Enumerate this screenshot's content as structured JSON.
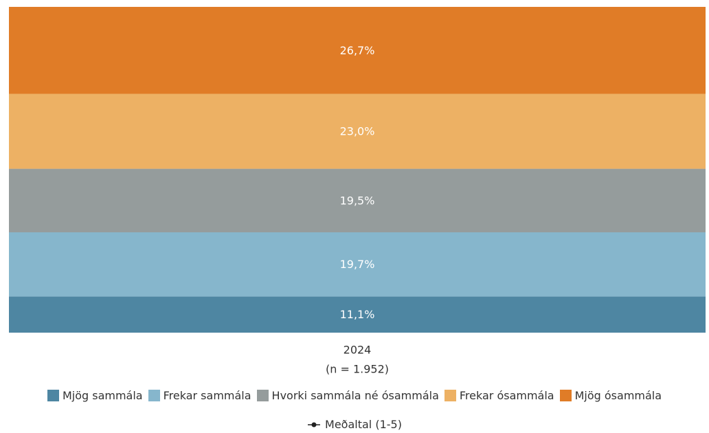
{
  "chart_data": {
    "type": "stacked_bar",
    "categories": [
      "2024"
    ],
    "category_notes": [
      "(n = 1.952)"
    ],
    "ylim": [
      0,
      100
    ],
    "series": [
      {
        "name": "Mjög sammála",
        "color": "#4e86a2",
        "values": [
          11.1
        ],
        "value_labels": [
          "11,1%"
        ]
      },
      {
        "name": "Frekar sammála",
        "color": "#86b6cc",
        "values": [
          19.7
        ],
        "value_labels": [
          "19,7%"
        ]
      },
      {
        "name": "Hvorki sammála né ósammála",
        "color": "#959c9c",
        "values": [
          19.5
        ],
        "value_labels": [
          "19,5%"
        ]
      },
      {
        "name": "Frekar ósammála",
        "color": "#edb164",
        "values": [
          23.0
        ],
        "value_labels": [
          "23,0%"
        ]
      },
      {
        "name": "Mjög ósammála",
        "color": "#e07c27",
        "values": [
          26.7
        ],
        "value_labels": [
          "26,7%"
        ]
      }
    ],
    "mean_legend": "Meðaltal (1-5)"
  }
}
